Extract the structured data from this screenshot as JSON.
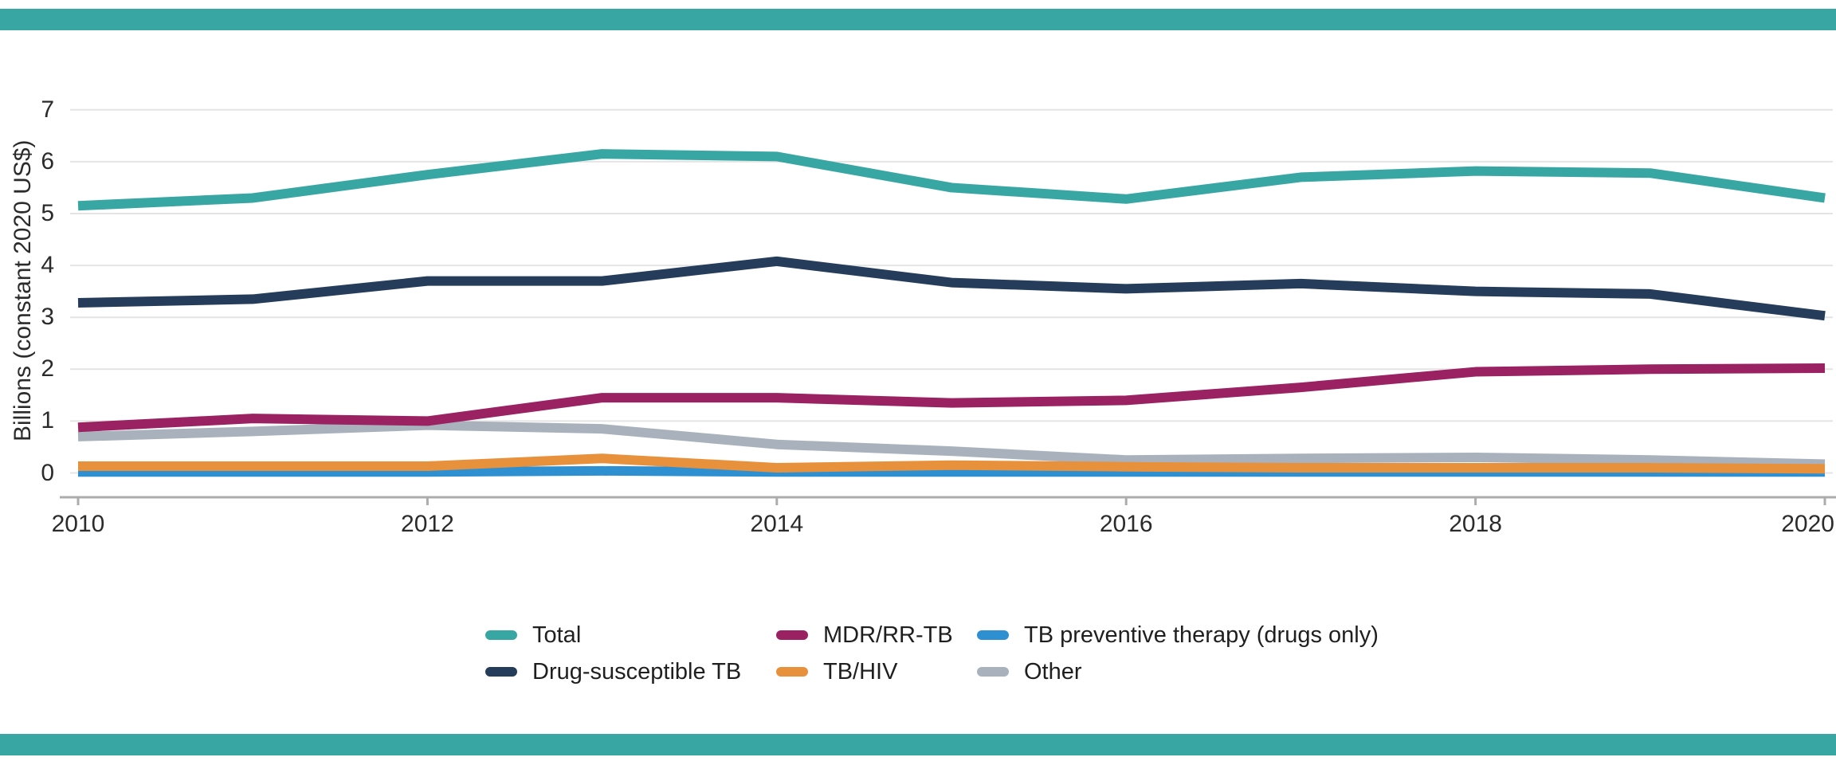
{
  "figure": {
    "rule_color": "#38A7A4",
    "background": "#FFFFFF",
    "text_color": "#2B2B2B",
    "gridline_color": "#E4E4E4",
    "axis_color": "#ACACAC"
  },
  "chart_data": {
    "type": "line",
    "title": "",
    "xlabel": "",
    "ylabel": "Billions (constant 2020 US$)",
    "x": [
      2010,
      2011,
      2012,
      2013,
      2014,
      2015,
      2016,
      2017,
      2018,
      2019,
      2020
    ],
    "x_ticks": [
      2010,
      2012,
      2014,
      2016,
      2018,
      2020
    ],
    "y_ticks": [
      0,
      1,
      2,
      3,
      4,
      5,
      6,
      7
    ],
    "ylim": [
      0,
      7
    ],
    "grid": "horizontal",
    "legend_position": "bottom",
    "series": [
      {
        "name": "Total",
        "color": "#38A7A4",
        "values": [
          5.15,
          5.3,
          5.75,
          6.15,
          6.1,
          5.5,
          5.28,
          5.7,
          5.82,
          5.78,
          5.3
        ]
      },
      {
        "name": "Drug-susceptible TB",
        "color": "#253C5B",
        "values": [
          3.28,
          3.35,
          3.7,
          3.7,
          4.08,
          3.67,
          3.55,
          3.65,
          3.5,
          3.45,
          3.03
        ]
      },
      {
        "name": "MDR/RR-TB",
        "color": "#9A2162",
        "values": [
          0.88,
          1.05,
          1.0,
          1.45,
          1.45,
          1.35,
          1.4,
          1.65,
          1.95,
          2.0,
          2.02
        ]
      },
      {
        "name": "TB/HIV",
        "color": "#E8913D",
        "values": [
          0.13,
          0.13,
          0.13,
          0.28,
          0.1,
          0.15,
          0.12,
          0.1,
          0.1,
          0.1,
          0.08
        ]
      },
      {
        "name": "TB preventive therapy (drugs only)",
        "color": "#2E90D1",
        "values": [
          0.02,
          0.02,
          0.02,
          0.04,
          0.02,
          0.02,
          0.02,
          0.02,
          0.02,
          0.02,
          0.02
        ]
      },
      {
        "name": "Other",
        "color": "#A9B2BC",
        "values": [
          0.7,
          0.8,
          0.92,
          0.85,
          0.55,
          0.42,
          0.25,
          0.28,
          0.3,
          0.25,
          0.17
        ]
      }
    ]
  },
  "legend": {
    "items": [
      {
        "label": "Total",
        "color": "#38A7A4"
      },
      {
        "label": "Drug-susceptible TB",
        "color": "#253C5B"
      },
      {
        "label": "MDR/RR-TB",
        "color": "#9A2162"
      },
      {
        "label": "TB/HIV",
        "color": "#E8913D"
      },
      {
        "label": "TB preventive therapy (drugs only)",
        "color": "#2E90D1"
      },
      {
        "label": "Other",
        "color": "#A9B2BC"
      }
    ]
  }
}
